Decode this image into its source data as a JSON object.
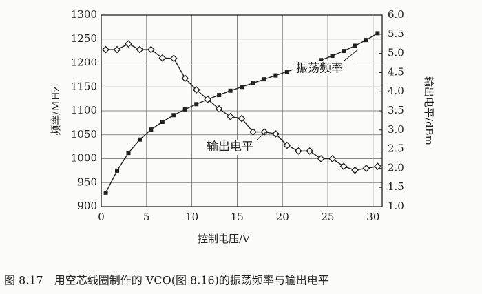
{
  "chart_data": {
    "type": "line",
    "caption": "图 8.17　用空芯线圈制作的 VCO(图 8.16)的振荡频率与输出电平",
    "xlabel": "控制电压/V",
    "ylabel": "频率/MHz",
    "y2label": "输出电平/dBm",
    "x": [
      0.5,
      1.75,
      3,
      4.25,
      5.5,
      6.75,
      8,
      9.25,
      10.5,
      11.75,
      13,
      14.25,
      15.5,
      16.75,
      18,
      19.25,
      20.5,
      21.75,
      23,
      24.25,
      25.5,
      26.75,
      28,
      29.25,
      30.5
    ],
    "xlim": [
      0,
      31
    ],
    "xticks": [
      0,
      5,
      10,
      15,
      20,
      25,
      30
    ],
    "ylim": [
      900,
      1300
    ],
    "yticks": [
      900,
      950,
      1000,
      1050,
      1100,
      1150,
      1200,
      1250,
      1300
    ],
    "y2lim": [
      1,
      6
    ],
    "y2ticks": [
      {
        "value": 1,
        "label": "1.0"
      },
      1.5,
      {
        "value": 2,
        "label": "2.0"
      },
      2.5,
      {
        "value": 3,
        "label": "3.0"
      },
      3.5,
      {
        "value": 4,
        "label": "4.0"
      },
      4.5,
      {
        "value": 5,
        "label": "5.0"
      },
      5.5,
      {
        "value": 6,
        "label": "6.0"
      }
    ],
    "grid": true,
    "series": [
      {
        "name": "振荡频率",
        "color": "#222222",
        "marker": "square",
        "axis": "y",
        "values": [
          929,
          975,
          1012,
          1040,
          1061,
          1077,
          1091,
          1103,
          1114,
          1124,
          1133,
          1142,
          1150,
          1158,
          1166,
          1174,
          1182,
          1190,
          1198,
          1206,
          1215,
          1225,
          1236,
          1248,
          1262
        ]
      },
      {
        "name": "输出电平",
        "color": "#222222",
        "marker": "diamond",
        "axis": "y2",
        "values": [
          5.1,
          5.1,
          5.25,
          5.1,
          5.1,
          4.88,
          4.87,
          4.35,
          4.05,
          3.8,
          3.55,
          3.35,
          3.3,
          2.95,
          2.95,
          2.9,
          2.6,
          2.45,
          2.45,
          2.25,
          2.25,
          2.05,
          1.95,
          2.0,
          2.05
        ]
      }
    ]
  }
}
